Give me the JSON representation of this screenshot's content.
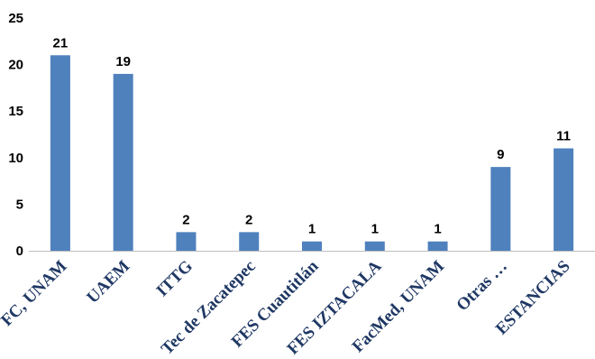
{
  "chart_data": {
    "type": "bar",
    "title": "",
    "xlabel": "",
    "ylabel": "",
    "categories": [
      "FC, UNAM",
      "UAEM",
      "ITTG",
      "Tec de Zacatepec",
      "FES Cuautitlán",
      "FES IZTACALA",
      "FacMed, UNAM",
      "Otras …",
      "ESTANCIAS"
    ],
    "values": [
      21,
      19,
      2,
      2,
      1,
      1,
      1,
      9,
      11
    ],
    "data_labels": [
      "21",
      "19",
      "2",
      "2",
      "1",
      "1",
      "1",
      "9",
      "11"
    ],
    "ylim": [
      0,
      25
    ],
    "yticks": [
      0,
      5,
      10,
      15,
      20,
      25
    ],
    "ytick_labels": [
      "0",
      "5",
      "10",
      "15",
      "20",
      "25"
    ],
    "grid": false,
    "legend": "none",
    "bar_color": "#4F81BD",
    "axis_color": "#BFBFBF",
    "xtick_color": "#1F3864"
  }
}
